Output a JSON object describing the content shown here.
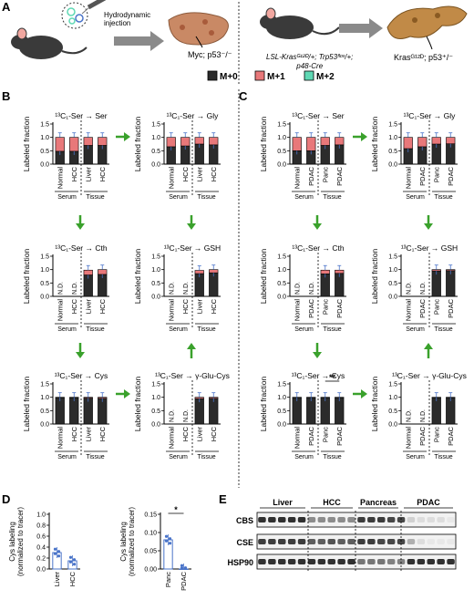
{
  "panels": {
    "A": "A",
    "B": "B",
    "C": "C",
    "D": "D",
    "E": "E"
  },
  "schematic": {
    "left_injection": "Hydrodynamic\ninjection",
    "left_model": "Myc; p53⁻/⁻",
    "right_genotype": "LSL-Krasᴳ¹²ᴰ/+; Trp53ᶠˡᵒˣ/+;\np48-Cre",
    "right_model": "Krasᴳ¹²ᴰ; p53⁺/⁻"
  },
  "legend": [
    {
      "label": "M+0",
      "color": "#2b2b2b"
    },
    {
      "label": "M+1",
      "color": "#e8787a"
    },
    {
      "label": "M+2",
      "color": "#5fd8b4"
    }
  ],
  "colors": {
    "m0": "#2b2b2b",
    "m1": "#e8787a",
    "m2": "#5fd8b4",
    "arrow": "#3aa12c",
    "dots": "#4a74c9"
  },
  "common": {
    "ylabel": "Labeled fraction",
    "yticks": [
      "0.0",
      "0.5",
      "1.0",
      "1.5"
    ],
    "serum": "Serum",
    "tissue": "Tissue",
    "nd": "N.D."
  },
  "chart_data": [
    {
      "id": "B-ser",
      "type": "bar",
      "title": "¹³C₁-Ser → Ser",
      "categories": [
        "Normal",
        "HCC",
        "Liver",
        "HCC"
      ],
      "m0": [
        0.48,
        0.48,
        0.7,
        0.7
      ],
      "m1": [
        0.52,
        0.52,
        0.3,
        0.3
      ],
      "ylim": [
        0,
        1.5
      ]
    },
    {
      "id": "B-gly",
      "type": "bar",
      "title": "¹³C₁-Ser → Gly",
      "categories": [
        "Normal",
        "HCC",
        "Liver",
        "HCC"
      ],
      "m0": [
        0.65,
        0.68,
        0.75,
        0.72
      ],
      "m1": [
        0.35,
        0.32,
        0.25,
        0.28
      ],
      "ylim": [
        0,
        1.5
      ]
    },
    {
      "id": "B-cth",
      "type": "bar",
      "title": "¹³C₁-Ser → Cth",
      "categories": [
        "Normal",
        "HCC",
        "Liver",
        "HCC"
      ],
      "m0": [
        null,
        null,
        0.8,
        0.82
      ],
      "m1": [
        null,
        null,
        0.18,
        0.18
      ],
      "ylim": [
        0,
        1.5
      ]
    },
    {
      "id": "B-gsh",
      "type": "bar",
      "title": "¹³C₁-Ser → GSH",
      "categories": [
        "Normal",
        "HCC",
        "Liver",
        "HCC"
      ],
      "m0": [
        null,
        null,
        0.85,
        0.88
      ],
      "m1": [
        null,
        null,
        0.12,
        0.12
      ],
      "ylim": [
        0,
        1.5
      ]
    },
    {
      "id": "B-cys",
      "type": "bar",
      "title": "¹³C₁-Ser → Cys",
      "categories": [
        "Normal",
        "HCC",
        "Liver",
        "HCC"
      ],
      "m0": [
        0.99,
        0.99,
        0.97,
        0.96
      ],
      "m1": [
        0.01,
        0.01,
        0.03,
        0.04
      ],
      "ylim": [
        0,
        1.5
      ]
    },
    {
      "id": "B-ggc",
      "type": "bar",
      "title": "¹³C₁-Ser → γ-Glu-Cys",
      "categories": [
        "Normal",
        "HCC",
        "Liver",
        "HCC"
      ],
      "m0": [
        null,
        null,
        0.95,
        0.96
      ],
      "m1": [
        null,
        null,
        0.05,
        0.04
      ],
      "ylim": [
        0,
        1.5
      ]
    },
    {
      "id": "C-ser",
      "type": "bar",
      "title": "¹³C₁-Ser → Ser",
      "categories": [
        "Normal",
        "PDAC",
        "Panc",
        "PDAC"
      ],
      "m0": [
        0.5,
        0.5,
        0.7,
        0.72
      ],
      "m1": [
        0.5,
        0.5,
        0.3,
        0.28
      ],
      "ylim": [
        0,
        1.5
      ]
    },
    {
      "id": "C-gly",
      "type": "bar",
      "title": "¹³C₁-Ser → Gly",
      "categories": [
        "Normal",
        "PDAC",
        "Panc",
        "PDAC"
      ],
      "m0": [
        0.58,
        0.65,
        0.75,
        0.76
      ],
      "m1": [
        0.42,
        0.35,
        0.25,
        0.24
      ],
      "ylim": [
        0,
        1.5
      ]
    },
    {
      "id": "C-cth",
      "type": "bar",
      "title": "¹³C₁-Ser → Cth",
      "categories": [
        "Normal",
        "PDAC",
        "Panc",
        "PDAC"
      ],
      "m0": [
        null,
        null,
        0.84,
        0.86
      ],
      "m1": [
        null,
        null,
        0.14,
        0.12
      ],
      "ylim": [
        0,
        1.5
      ]
    },
    {
      "id": "C-gsh",
      "type": "bar",
      "title": "¹³C₁-Ser → GSH",
      "categories": [
        "Normal",
        "PDAC",
        "Panc",
        "PDAC"
      ],
      "m0": [
        null,
        null,
        0.95,
        0.96
      ],
      "m1": [
        null,
        null,
        0.05,
        0.04
      ],
      "ylim": [
        0,
        1.5
      ]
    },
    {
      "id": "C-cys",
      "type": "bar",
      "title": "¹³C₁-Ser → Cys",
      "categories": [
        "Normal",
        "PDAC",
        "Panc",
        "PDAC"
      ],
      "m0": [
        0.99,
        0.99,
        0.99,
        0.99
      ],
      "m1": [
        0.01,
        0.01,
        0.01,
        0.01
      ],
      "ylim": [
        0,
        1.5
      ],
      "sig": "**"
    },
    {
      "id": "C-ggc",
      "type": "bar",
      "title": "¹³C₁-Ser → γ-Glu-Cys",
      "categories": [
        "Normal",
        "PDAC",
        "Panc",
        "PDAC"
      ],
      "m0": [
        null,
        null,
        0.99,
        0.99
      ],
      "m1": [
        null,
        null,
        0.01,
        0.01
      ],
      "ylim": [
        0,
        1.5
      ]
    },
    {
      "id": "D-liver",
      "type": "bar",
      "ylabel": "Cys labeling\n(normalized to tracer)",
      "categories": [
        "Liver",
        "HCC"
      ],
      "values": [
        0.3,
        0.15
      ],
      "yticks": [
        "0.0",
        "0.2",
        "0.4",
        "0.6",
        "0.8",
        "1.0"
      ],
      "ylim": [
        0,
        1.0
      ]
    },
    {
      "id": "D-panc",
      "type": "bar",
      "ylabel": "Cys labeling\n(normalized to tracer)",
      "categories": [
        "Panc",
        "PDAC"
      ],
      "values": [
        0.08,
        0.0
      ],
      "yticks": [
        "0.00",
        "0.05",
        "0.10",
        "0.15"
      ],
      "ylim": [
        0,
        0.15
      ],
      "sig": "*"
    }
  ],
  "western": {
    "groups": [
      "Liver",
      "HCC",
      "Pancreas",
      "PDAC"
    ],
    "rows": [
      "CBS",
      "CSE",
      "HSP90"
    ]
  }
}
